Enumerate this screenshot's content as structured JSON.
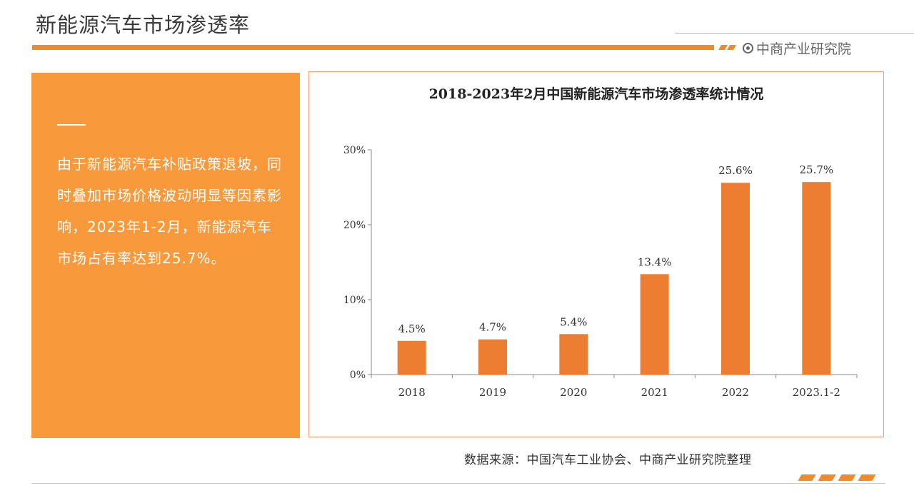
{
  "page": {
    "title": "新能源汽车市场渗透率",
    "brand": "中商产业研究院",
    "brand_icon": "target-icon",
    "accent_color": "#f08a2a"
  },
  "left_panel": {
    "text": "由于新能源汽车补贴政策退坡，同时叠加市场价格波动明显等因素影响，2023年1-2月，新能源汽车市场占有率达到25.7%。",
    "background_color": "#f89a3c"
  },
  "chart_data": {
    "type": "bar",
    "title": "2018-2023年2月中国新能源汽车市场渗透率统计情况",
    "categories": [
      "2018",
      "2019",
      "2020",
      "2021",
      "2022",
      "2023.1-2"
    ],
    "values": [
      4.5,
      4.7,
      5.4,
      13.4,
      25.6,
      25.7
    ],
    "data_labels": [
      "4.5%",
      "4.7%",
      "5.4%",
      "13.4%",
      "25.6%",
      "25.7%"
    ],
    "y_ticks": [
      0,
      10,
      20,
      30
    ],
    "y_tick_labels": [
      "0%",
      "10%",
      "20%",
      "30%"
    ],
    "ylim": [
      0,
      30
    ],
    "xlabel": "",
    "ylabel": "",
    "grid": false,
    "bar_color": "#ed7d31"
  },
  "footer": {
    "source": "数据来源：中国汽车工业协会、中商产业研究院整理"
  }
}
